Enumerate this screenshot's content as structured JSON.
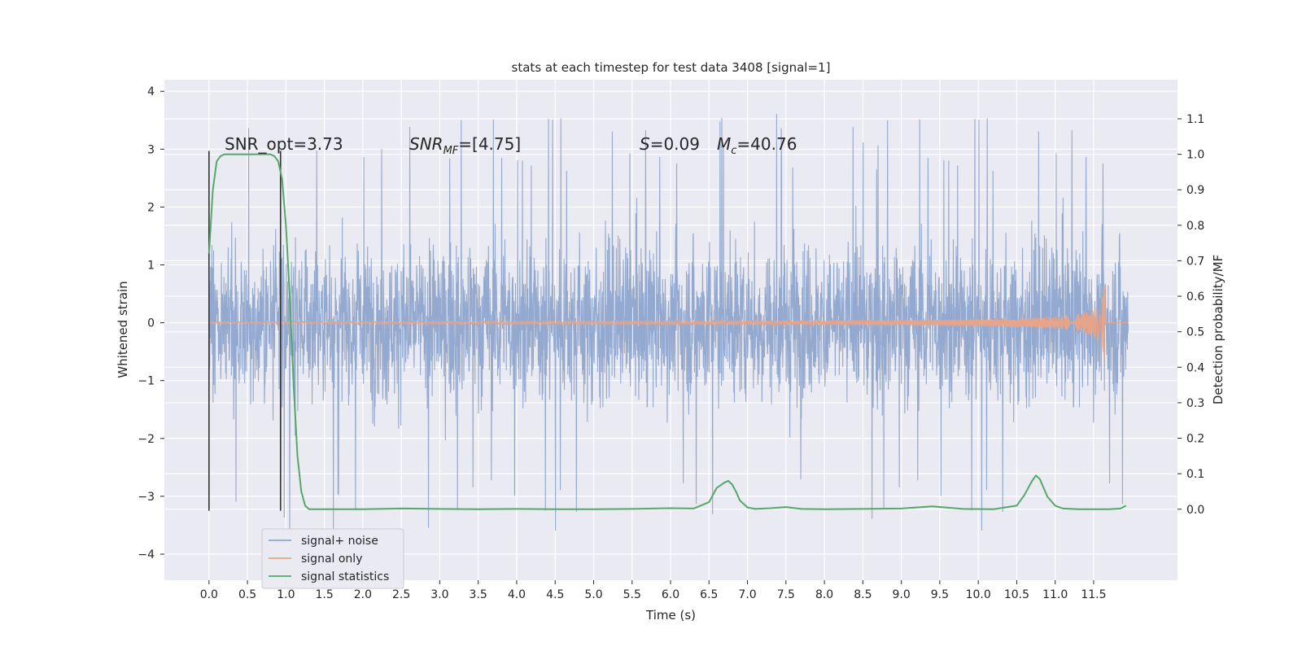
{
  "chart_data": {
    "type": "line",
    "title": "stats at each timestep for test data 3408 [signal=1]",
    "xlabel": "Time (s)",
    "ylabel": "Whitened strain",
    "y2label": "Detection probability/MF",
    "xlim": [
      -0.58,
      12.59
    ],
    "ylim": [
      -4.45,
      4.2
    ],
    "y2lim": [
      -0.2,
      1.21
    ],
    "x_ticks": [
      "0.0",
      "0.5",
      "1.0",
      "1.5",
      "2.0",
      "2.5",
      "3.0",
      "3.5",
      "4.0",
      "4.5",
      "5.0",
      "5.5",
      "6.0",
      "6.5",
      "7.0",
      "7.5",
      "8.0",
      "8.5",
      "9.0",
      "9.5",
      "10.0",
      "10.5",
      "11.0",
      "11.5"
    ],
    "y_ticks": [
      "4",
      "3",
      "2",
      "1",
      "0",
      "−1",
      "−2",
      "−3",
      "−4"
    ],
    "y2_ticks": [
      "1.1",
      "1.0",
      "0.9",
      "0.8",
      "0.7",
      "0.6",
      "0.5",
      "0.4",
      "0.3",
      "0.2",
      "0.1",
      "0.0"
    ],
    "grid": true,
    "legend_placement": "lower-left",
    "annotations": {
      "snr_opt": "SNR_opt=3.73",
      "snr_mf_base": "SNR",
      "snr_mf_sub": "MF",
      "snr_mf_val": "=[4.75]",
      "s_label": "S",
      "s_val": "=0.09",
      "mc_base": "M",
      "mc_sub": "c",
      "mc_val": "=40.76"
    },
    "vertical_markers_x": [
      0.0,
      0.93
    ],
    "series": [
      {
        "name": "signal+ noise",
        "color": "#8fa5cc",
        "description_of_envelope": "Gaussian-like noise spanning roughly -2.5..2.5 with spikes up to about 3.8 and down to -3.9"
      },
      {
        "name": "signal only",
        "color": "#e6a58a",
        "chirp_peak_time": 11.65,
        "chirp_peak_amplitude": 0.9
      },
      {
        "name": "signal statistics",
        "color": "#55a868",
        "axis": "right",
        "x": [
          0.0,
          0.05,
          0.1,
          0.15,
          0.2,
          0.3,
          0.4,
          0.5,
          0.6,
          0.7,
          0.8,
          0.85,
          0.9,
          0.95,
          1.0,
          1.05,
          1.1,
          1.15,
          1.2,
          1.25,
          1.3,
          1.4,
          1.5,
          2.0,
          2.5,
          3.0,
          3.5,
          4.0,
          4.5,
          5.0,
          5.5,
          6.0,
          6.3,
          6.5,
          6.6,
          6.7,
          6.75,
          6.8,
          6.85,
          6.9,
          7.0,
          7.1,
          7.3,
          7.5,
          7.7,
          8.0,
          8.5,
          9.0,
          9.4,
          9.8,
          10.2,
          10.5,
          10.6,
          10.7,
          10.75,
          10.8,
          10.85,
          10.9,
          11.0,
          11.1,
          11.3,
          11.5,
          11.7,
          11.85,
          11.92
        ],
        "y": [
          0.72,
          0.9,
          0.98,
          0.995,
          1.0,
          1.0,
          1.0,
          1.0,
          1.0,
          1.0,
          1.0,
          0.995,
          0.98,
          0.93,
          0.8,
          0.6,
          0.35,
          0.15,
          0.05,
          0.01,
          0.0,
          0.0,
          0.0,
          0.0,
          0.002,
          0.001,
          0.0,
          0.001,
          0.0,
          0.0,
          0.001,
          0.003,
          0.002,
          0.02,
          0.06,
          0.075,
          0.08,
          0.07,
          0.05,
          0.025,
          0.005,
          0.001,
          0.003,
          0.006,
          0.001,
          0.0,
          0.001,
          0.002,
          0.008,
          0.001,
          0.0,
          0.01,
          0.04,
          0.08,
          0.095,
          0.085,
          0.06,
          0.035,
          0.01,
          0.002,
          0.0,
          0.0,
          0.0,
          0.002,
          0.01
        ]
      }
    ]
  }
}
